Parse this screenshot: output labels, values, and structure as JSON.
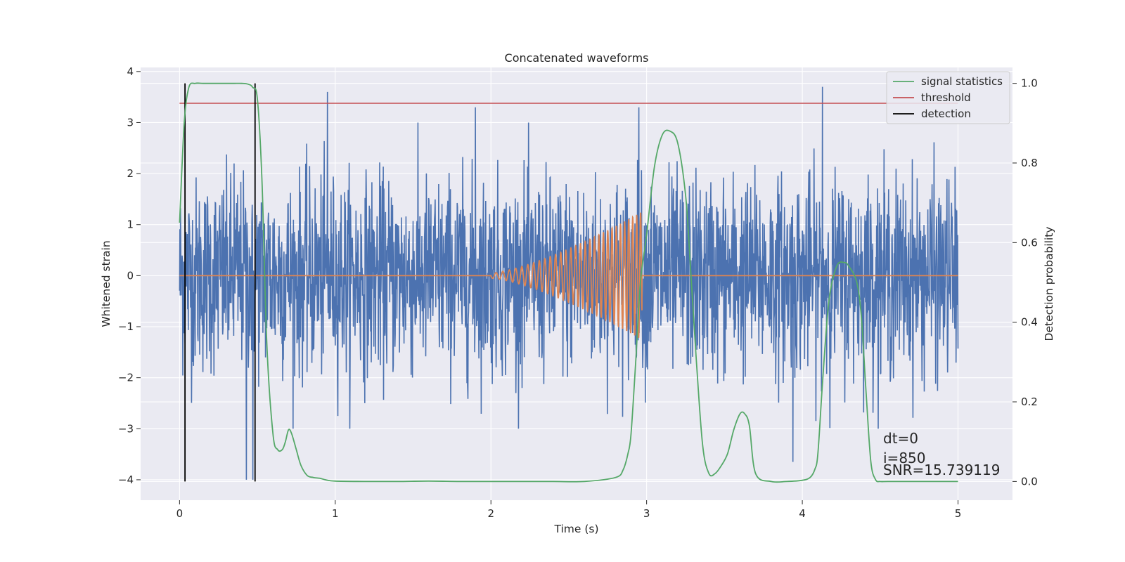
{
  "chart_data": {
    "type": "line",
    "title": "Concatenated waveforms",
    "xlabel": "Time (s)",
    "ylabel": "Whitened strain",
    "y2label": "Detection probability",
    "xlim": [
      -0.25,
      5.35
    ],
    "ylim": [
      -4.4,
      4.08
    ],
    "y2lim": [
      -0.047,
      1.04
    ],
    "xticks": [
      0,
      1,
      2,
      3,
      4,
      5
    ],
    "xtick_labels": [
      "0",
      "1",
      "2",
      "3",
      "4",
      "5"
    ],
    "yticks": [
      -4,
      -3,
      -2,
      -1,
      0,
      1,
      2,
      3,
      4
    ],
    "ytick_labels": [
      "−4",
      "−3",
      "−2",
      "−1",
      "0",
      "1",
      "2",
      "3",
      "4"
    ],
    "y2ticks": [
      0.0,
      0.2,
      0.4,
      0.6,
      0.8,
      1.0
    ],
    "y2tick_labels": [
      "0.0",
      "0.2",
      "0.4",
      "0.6",
      "0.8",
      "1.0"
    ],
    "grid": true,
    "legend_position": "top-right",
    "legend": [
      {
        "label": "signal statistics",
        "color": "#55a868"
      },
      {
        "label": "threshold",
        "color": "#c44e52"
      },
      {
        "label": "detection",
        "color": "#000000"
      }
    ],
    "strain": {
      "x_start": 0.0,
      "x_end": 5.0,
      "color": "#4c72b0",
      "noise_amplitude_typical": 1.0,
      "peaks": [
        {
          "x": 0.35,
          "y": 2.2
        },
        {
          "x": 0.95,
          "y": 3.6
        },
        {
          "x": 1.9,
          "y": 3.3
        },
        {
          "x": 2.95,
          "y": 3.3
        },
        {
          "x": 4.13,
          "y": 3.7
        },
        {
          "x": 0.43,
          "y": -4.0
        },
        {
          "x": 0.47,
          "y": -4.0
        },
        {
          "x": 3.94,
          "y": -3.65
        }
      ]
    },
    "template": {
      "color": "#dd8452",
      "chirp_start": 2.0,
      "chirp_end": 2.97,
      "start_amplitude": 0.05,
      "end_amplitude": 1.25
    },
    "signal_statistics": {
      "color": "#55a868",
      "x": [
        0.0,
        0.03,
        0.06,
        0.1,
        0.15,
        0.2,
        0.25,
        0.3,
        0.35,
        0.4,
        0.44,
        0.47,
        0.5,
        0.53,
        0.56,
        0.6,
        0.63,
        0.66,
        0.68,
        0.7,
        0.72,
        0.75,
        0.78,
        0.82,
        0.86,
        0.9,
        0.94,
        1.0,
        1.2,
        1.4,
        1.6,
        1.8,
        2.0,
        2.2,
        2.4,
        2.6,
        2.8,
        2.85,
        2.88,
        2.9,
        2.93,
        2.96,
        3.0,
        3.05,
        3.1,
        3.15,
        3.2,
        3.25,
        3.28,
        3.32,
        3.36,
        3.4,
        3.44,
        3.48,
        3.52,
        3.56,
        3.6,
        3.63,
        3.66,
        3.7,
        3.8,
        3.9,
        4.0,
        4.05,
        4.08,
        4.1,
        4.13,
        4.17,
        4.22,
        4.27,
        4.3,
        4.35,
        4.38,
        4.41,
        4.44,
        4.47,
        4.5,
        4.55,
        4.7,
        5.0
      ],
      "y": [
        0.65,
        0.9,
        0.99,
        1.0,
        1.0,
        1.0,
        1.0,
        1.0,
        1.0,
        1.0,
        0.998,
        0.99,
        0.96,
        0.75,
        0.35,
        0.12,
        0.08,
        0.08,
        0.1,
        0.13,
        0.12,
        0.08,
        0.04,
        0.015,
        0.01,
        0.008,
        0.004,
        0.001,
        0.0,
        0.0,
        0.001,
        0.0,
        0.0,
        0.0,
        0.0,
        0.0,
        0.01,
        0.03,
        0.07,
        0.12,
        0.3,
        0.5,
        0.62,
        0.79,
        0.87,
        0.88,
        0.85,
        0.72,
        0.55,
        0.3,
        0.09,
        0.02,
        0.02,
        0.04,
        0.07,
        0.13,
        0.17,
        0.17,
        0.14,
        0.02,
        0.0,
        0.0,
        0.003,
        0.01,
        0.03,
        0.07,
        0.25,
        0.45,
        0.54,
        0.55,
        0.54,
        0.5,
        0.41,
        0.22,
        0.05,
        0.005,
        0.0,
        0.0,
        0.0,
        0.0
      ]
    },
    "threshold": {
      "color": "#c44e52",
      "value": 0.95,
      "x_range": [
        0.0,
        5.0
      ]
    },
    "detections": {
      "color": "#000000",
      "x": [
        0.035,
        0.485
      ]
    },
    "annotations": [
      "dt=0",
      "i=850",
      "SNR=15.739119"
    ]
  }
}
